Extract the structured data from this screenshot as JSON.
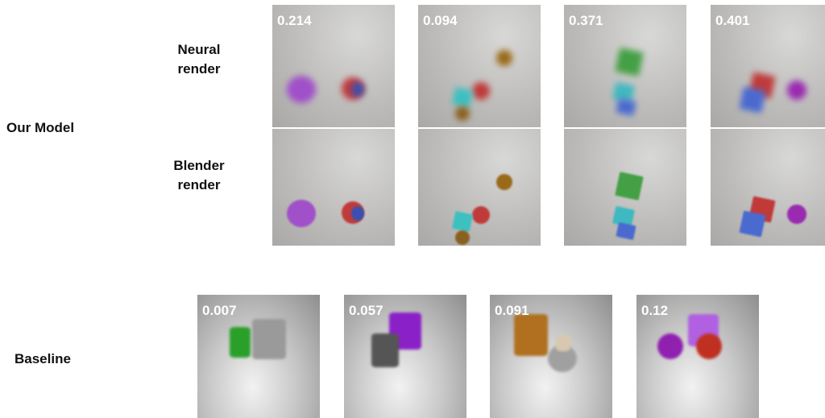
{
  "our_model": {
    "label": "Our Model",
    "neural_render_label": "Neural render",
    "blender_render_label": "Blender render",
    "scores": [
      0.214,
      0.094,
      0.371,
      0.401
    ]
  },
  "baseline": {
    "label": "Baseline",
    "scores": [
      0.007,
      0.057,
      0.091,
      0.12
    ]
  }
}
